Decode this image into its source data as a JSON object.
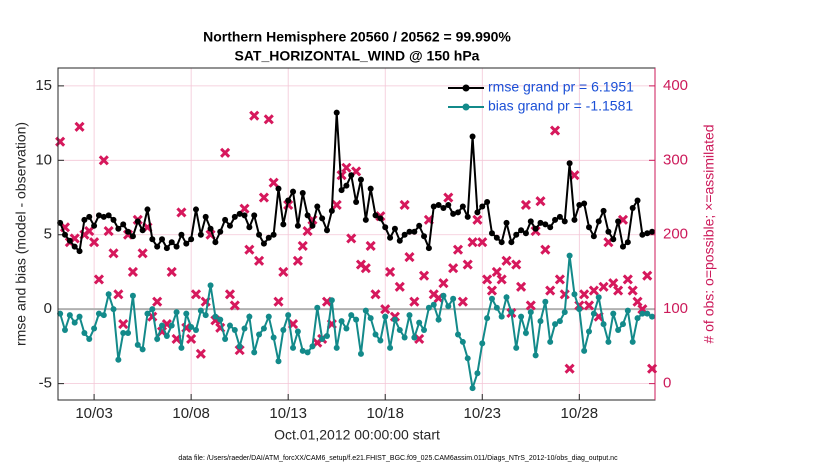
{
  "chart_data": {
    "type": "line",
    "title": "Northern Hemisphere 20560 / 20562 = 99.990%",
    "subtitle": "SAT_HORIZONTAL_WIND @ 150 hPa",
    "y_label": "rmse and bias (model - observation)",
    "y2_label": "# of obs: o=possible; ×=assimilated",
    "x_label": "Oct.01,2012 00:00:00 start",
    "footnote": "data file: /Users/raeder/DAI/ATM_forcXX/CAM6_setup/f.e21.FHIST_BGC.f09_025.CAM6assim.011/Diags_NTrS_2012-10/obs_diag_output.nc",
    "x": [
      1.25,
      1.5,
      1.75,
      2,
      2.25,
      2.5,
      2.75,
      3,
      3.25,
      3.5,
      3.75,
      4,
      4.25,
      4.5,
      4.75,
      5,
      5.25,
      5.5,
      5.75,
      6,
      6.25,
      6.5,
      6.75,
      7,
      7.25,
      7.5,
      7.75,
      8,
      8.25,
      8.5,
      8.75,
      9,
      9.25,
      9.5,
      9.75,
      10,
      10.25,
      10.5,
      10.75,
      11,
      11.25,
      11.5,
      11.75,
      12,
      12.25,
      12.5,
      12.75,
      13,
      13.25,
      13.5,
      13.75,
      14,
      14.25,
      14.5,
      14.75,
      15,
      15.25,
      15.5,
      15.75,
      16,
      16.25,
      16.5,
      16.75,
      17,
      17.25,
      17.5,
      17.75,
      18,
      18.25,
      18.5,
      18.75,
      19,
      19.25,
      19.5,
      19.75,
      20,
      20.25,
      20.5,
      20.75,
      21,
      21.25,
      21.5,
      21.75,
      22,
      22.25,
      22.5,
      22.75,
      23,
      23.25,
      23.5,
      23.75,
      24,
      24.25,
      24.5,
      24.75,
      25,
      25.25,
      25.5,
      25.75,
      26,
      26.25,
      26.5,
      26.75,
      27,
      27.25,
      27.5,
      27.75,
      28,
      28.25,
      28.5,
      28.75,
      29,
      29.25,
      29.5,
      29.75,
      30,
      30.25,
      30.5,
      30.75,
      31,
      31.25,
      31.5,
      31.75
    ],
    "series": [
      {
        "name": "rmse grand pr = 6.1951",
        "color": "#000000",
        "values": [
          5.8,
          5.0,
          4.6,
          4.2,
          3.9,
          6.0,
          6.2,
          5.6,
          6.3,
          6.2,
          6.3,
          6.0,
          5.4,
          5.7,
          5.2,
          4.9,
          5.9,
          5.3,
          6.7,
          4.7,
          4.2,
          4.7,
          4.1,
          4.5,
          4.2,
          5.0,
          4.4,
          4.7,
          6.7,
          5.0,
          6.2,
          5.4,
          4.5,
          5.2,
          6.0,
          5.6,
          6.2,
          6.4,
          6.3,
          5.5,
          6.3,
          5.0,
          4.4,
          4.8,
          5.0,
          8.1,
          5.7,
          7.3,
          7.9,
          5.6,
          7.8,
          6.3,
          5.6,
          6.9,
          6.1,
          5.3,
          6.6,
          13.2,
          8.0,
          8.3,
          9.0,
          7.2,
          8.7,
          6.0,
          8.1,
          6.3,
          6.1,
          5.5,
          4.8,
          5.4,
          4.6,
          5.0,
          5.2,
          5.2,
          5.6,
          4.9,
          4.1,
          6.9,
          7.0,
          6.8,
          7.0,
          6.4,
          6.5,
          6.9,
          6.2,
          11.6,
          6.5,
          6.9,
          7.2,
          5.1,
          4.8,
          4.5,
          5.8,
          4.5,
          5.0,
          5.3,
          5.1,
          5.9,
          5.4,
          5.8,
          5.7,
          5.5,
          6.0,
          6.2,
          5.9,
          9.8,
          6.0,
          7.0,
          7.1,
          5.5,
          4.9,
          5.9,
          6.6,
          5.2,
          4.7,
          5.9,
          4.2,
          4.5,
          6.8,
          7.3,
          5.0,
          5.1,
          5.2
        ]
      },
      {
        "name": "bias grand pr = -1.1581",
        "color": "#138a8a",
        "values": [
          -0.3,
          -1.4,
          -0.4,
          -0.9,
          -0.5,
          -1.6,
          -2.0,
          -1.3,
          -0.3,
          -0.4,
          1.0,
          0.0,
          -3.4,
          -1.6,
          -1.6,
          0.9,
          -2.4,
          -2.7,
          -0.3,
          0.0,
          -2.0,
          -1.1,
          -1.8,
          -1.1,
          -0.2,
          -2.6,
          -0.3,
          -1.2,
          -1.4,
          -0.1,
          -0.4,
          1.6,
          -0.5,
          -0.7,
          -2.0,
          -1.1,
          -1.4,
          -2.5,
          -1.3,
          -0.5,
          -2.9,
          -1.7,
          -1.3,
          -0.5,
          -1.9,
          -3.5,
          -1.4,
          -0.4,
          -2.6,
          -1.5,
          -2.8,
          -2.9,
          -2.5,
          0.1,
          -2.0,
          -1.8,
          0.6,
          -2.6,
          -0.8,
          -1.3,
          -0.4,
          -0.7,
          -3.0,
          -0.1,
          -0.6,
          -1.7,
          -2.1,
          -0.5,
          -2.6,
          -0.7,
          -1.4,
          -1.9,
          -0.4,
          -1.9,
          -0.9,
          -1.4,
          0.1,
          0.3,
          -0.7,
          0.9,
          0.2,
          0.7,
          -1.7,
          -2.2,
          -3.3,
          -5.3,
          -4.3,
          -2.3,
          -0.6,
          0.7,
          0.1,
          -0.5,
          0.8,
          -0.2,
          -2.6,
          -0.5,
          -1.6,
          -0.2,
          -3.1,
          -0.8,
          0.5,
          -2.2,
          -1.0,
          -0.8,
          -0.2,
          3.6,
          1.0,
          0.0,
          -2.8,
          -1.5,
          -0.3,
          0.8,
          -1.0,
          -2.2,
          -0.3,
          -1.4,
          -1.0,
          -0.1,
          -2.2,
          -0.6,
          -0.3,
          -0.3,
          -0.5
        ]
      },
      {
        "color": "#d6185c",
        "axis": "y2",
        "marker": "x",
        "values": [
          325,
          210,
          190,
          195,
          345,
          200,
          205,
          190,
          140,
          300,
          205,
          175,
          120,
          80,
          200,
          150,
          220,
          175,
          210,
          90,
          110,
          70,
          80,
          150,
          60,
          230,
          75,
          60,
          120,
          40,
          110,
          200,
          85,
          75,
          310,
          120,
          105,
          45,
          235,
          180,
          360,
          165,
          250,
          355,
          270,
          110,
          150,
          240,
          80,
          165,
          185,
          205,
          220,
          55,
          60,
          110,
          80,
          240,
          280,
          290,
          195,
          285,
          160,
          155,
          185,
          120,
          225,
          100,
          150,
          90,
          130,
          240,
          170,
          110,
          60,
          145,
          220,
          120,
          115,
          135,
          250,
          155,
          180,
          110,
          160,
          190,
          220,
          190,
          140,
          125,
          150,
          140,
          165,
          95,
          160,
          130,
          240,
          105,
          205,
          245,
          180,
          125,
          340,
          140,
          120,
          20,
          280,
          105,
          120,
          105,
          125,
          90,
          130,
          190,
          135,
          125,
          220,
          140,
          125,
          110,
          100,
          145,
          20
        ]
      }
    ],
    "xlim": [
      1.14,
      31.9
    ],
    "xticks": [
      {
        "value": 3,
        "label": "10/03"
      },
      {
        "value": 8,
        "label": "10/08"
      },
      {
        "value": 13,
        "label": "10/13"
      },
      {
        "value": 18,
        "label": "10/18"
      },
      {
        "value": 23,
        "label": "10/23"
      },
      {
        "value": 28,
        "label": "10/28"
      }
    ],
    "ylim": [
      -6.1,
      16.2
    ],
    "yticks": [
      -5,
      0,
      5,
      10,
      15
    ],
    "y2lim": [
      -22,
      424
    ],
    "y2ticks": [
      0,
      100,
      200,
      300,
      400
    ],
    "zero_line_color": "#b0b0b0",
    "grid_color": "#f3c6d6",
    "y2_color": "#cc1a5a",
    "legend": "upper right",
    "grid": true
  }
}
